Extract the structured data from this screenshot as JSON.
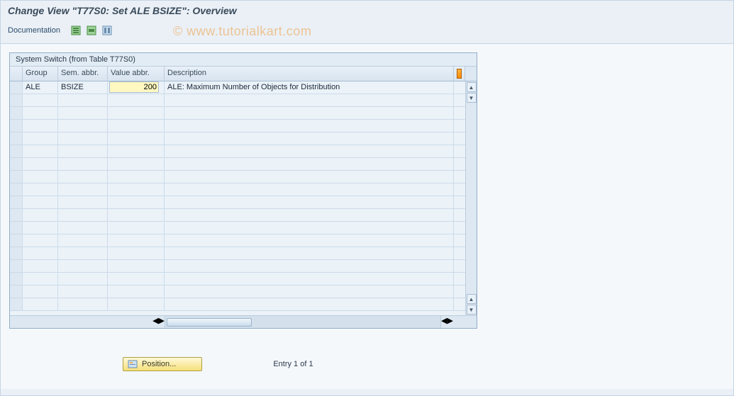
{
  "title": "Change View \"T77S0: Set ALE BSIZE\": Overview",
  "toolbar": {
    "documentation_label": "Documentation"
  },
  "panel": {
    "label": "System Switch (from Table T77S0)"
  },
  "columns": {
    "group": "Group",
    "sem": "Sem. abbr.",
    "val": "Value abbr.",
    "desc": "Description"
  },
  "rows": [
    {
      "group": "ALE",
      "sem": "BSIZE",
      "val": "200",
      "desc": "ALE: Maximum Number of Objects for Distribution"
    }
  ],
  "position_button": "Position...",
  "entry_status": "Entry 1 of 1",
  "watermark": "© www.tutorialkart.com",
  "colors": {
    "panel_bg": "#e8eff6",
    "header_bg": "#dde8f2",
    "row_bg": "#ebf2f8",
    "highlight_input": "#fff8c0",
    "accent_btn": "#f5e07a",
    "border": "#a8bdd2"
  }
}
